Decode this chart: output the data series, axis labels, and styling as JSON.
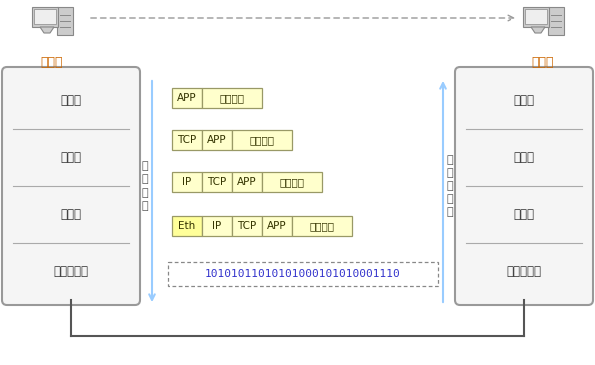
{
  "bg_color": "#ffffff",
  "fig_w": 5.95,
  "fig_h": 3.65,
  "dpi": 100,
  "sender_label": "发送方",
  "receiver_label": "接收方",
  "encap_label": "封装过程",
  "decap_label": "解封装过程",
  "left_layers": [
    "应用层",
    "传输层",
    "网络层",
    "网络接口层"
  ],
  "right_layers": [
    "应用层",
    "传输层",
    "网络层",
    "网络接口层"
  ],
  "rows": [
    [
      [
        "APP",
        "#ffffcc",
        30
      ],
      [
        "用户数据",
        "#ffffcc",
        60
      ]
    ],
    [
      [
        "TCP",
        "#ffffcc",
        30
      ],
      [
        "APP",
        "#ffffcc",
        30
      ],
      [
        "用户数据",
        "#ffffcc",
        60
      ]
    ],
    [
      [
        "IP",
        "#ffffcc",
        30
      ],
      [
        "TCP",
        "#ffffcc",
        30
      ],
      [
        "APP",
        "#ffffcc",
        30
      ],
      [
        "用户数据",
        "#ffffcc",
        60
      ]
    ],
    [
      [
        "Eth",
        "#ffff99",
        30
      ],
      [
        "IP",
        "#ffffcc",
        30
      ],
      [
        "TCP",
        "#ffffcc",
        30
      ],
      [
        "APP",
        "#ffffcc",
        30
      ],
      [
        "用户数据",
        "#ffffcc",
        60
      ]
    ]
  ],
  "binary_string": "10101011010101000101010001110",
  "layer_box_fill": "#f5f5f5",
  "layer_box_edge": "#999999",
  "layer_divider": "#aaaaaa",
  "layer_text_color": "#333333",
  "header_text_color": "#333300",
  "header_edge": "#999966",
  "vertical_line_color": "#99ccff",
  "dashed_arrow_color": "#999999",
  "bottom_line_color": "#555555",
  "encap_text_color": "#555555",
  "binary_text_color": "#3333cc",
  "computer_fill": "#cccccc",
  "computer_edge": "#888888",
  "sender_text_color": "#cc6600",
  "receiver_text_color": "#cc6600"
}
